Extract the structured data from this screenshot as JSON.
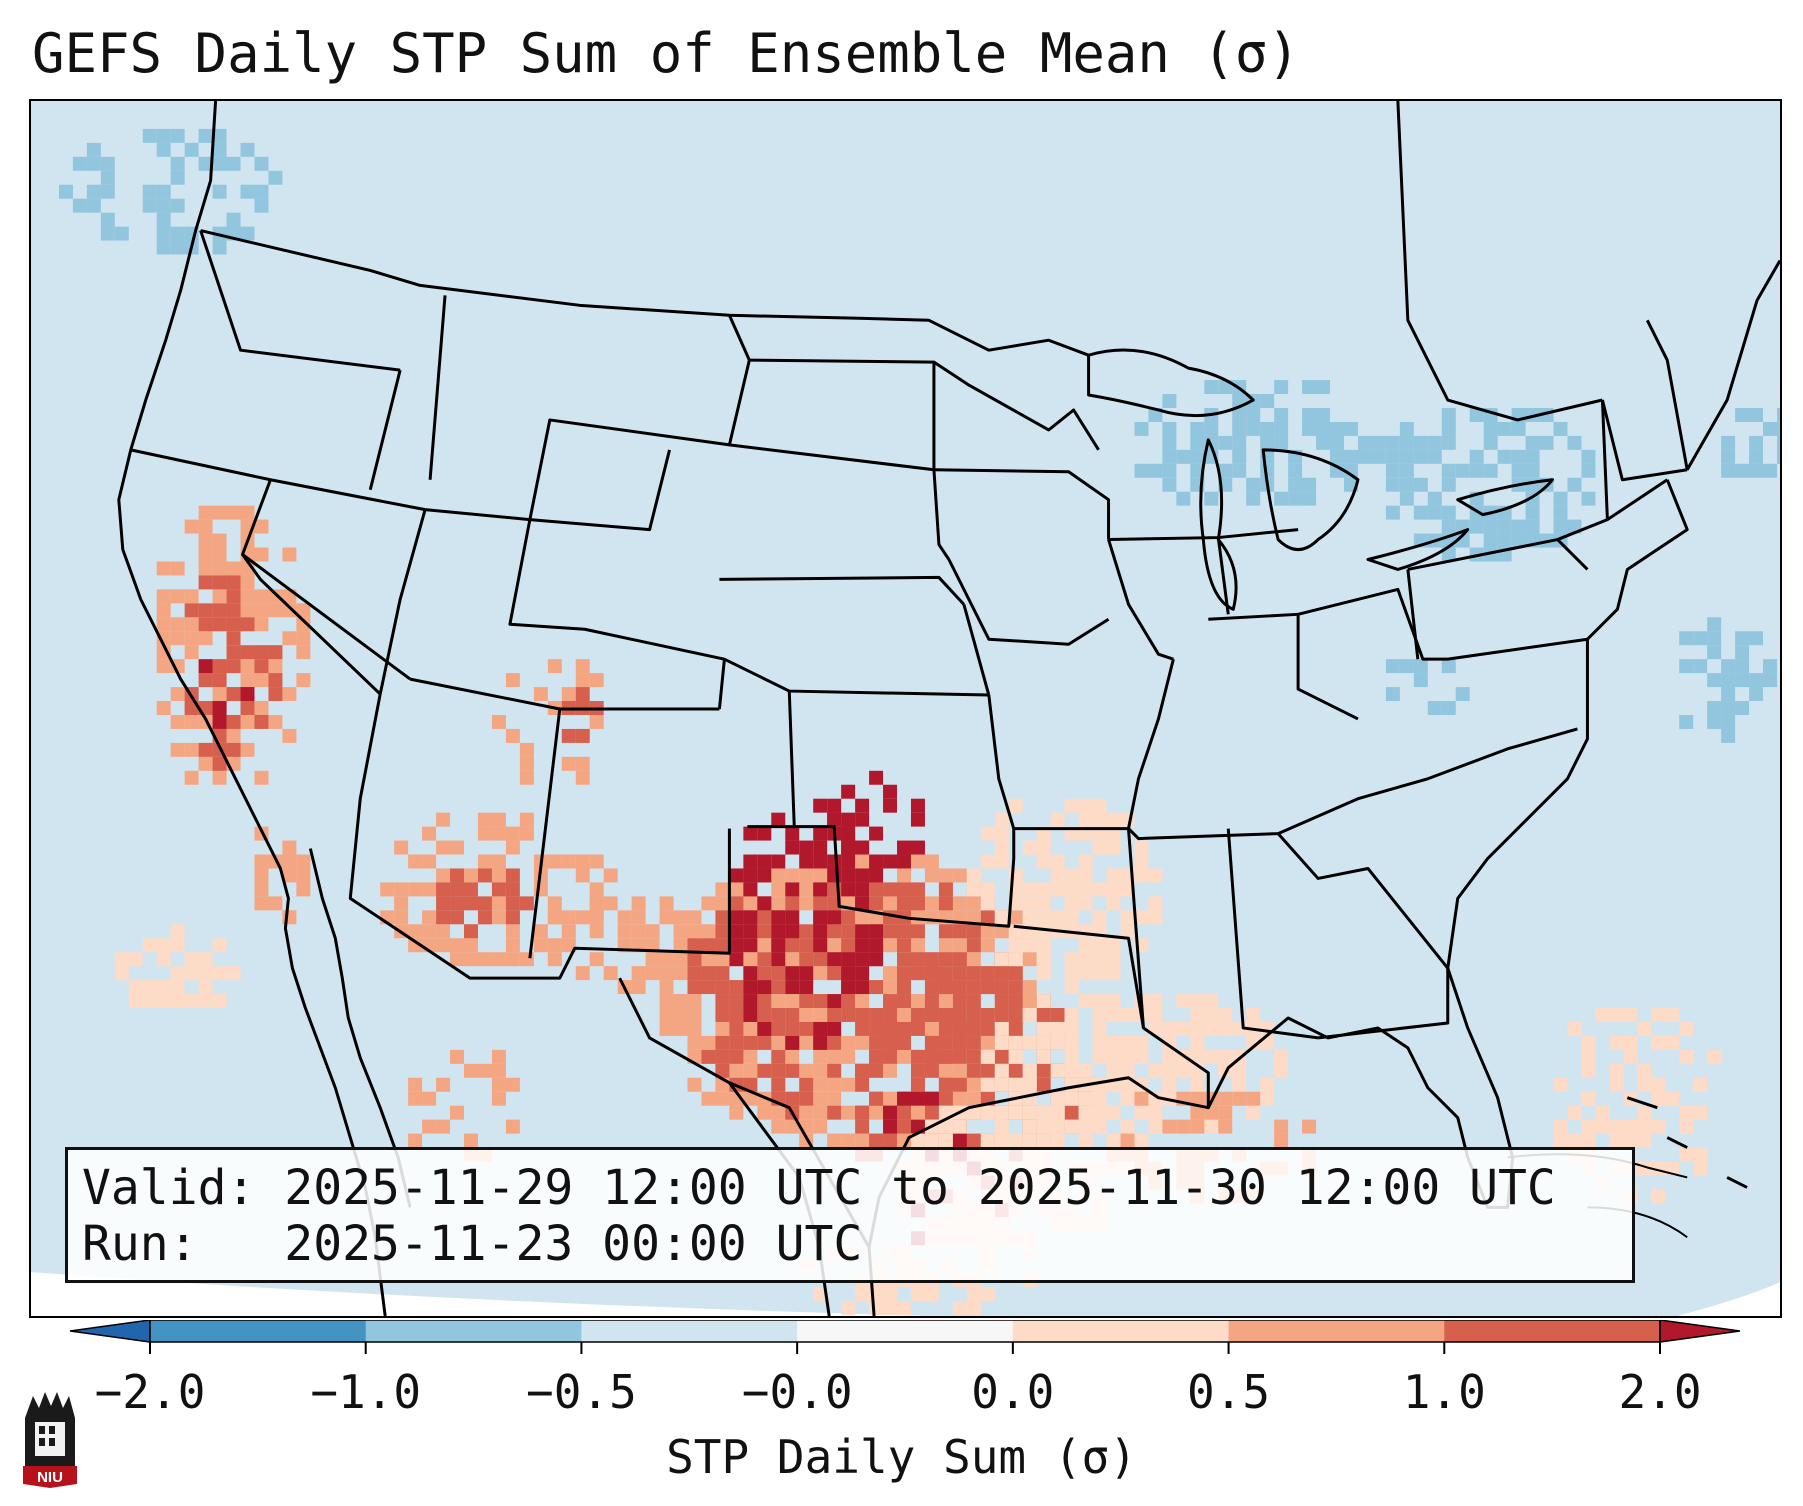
{
  "title": "GEFS Daily STP Sum of Ensemble Mean (σ)",
  "info": {
    "valid": "Valid: 2025-11-29 12:00 UTC to 2025-11-30 12:00 UTC",
    "run": "Run:   2025-11-23 00:00 UTC"
  },
  "map": {
    "projection": "Lambert Conformal CONUS",
    "background_color": "#d1e5f0",
    "field": "STP daily sum anomaly (sigma)"
  },
  "colorbar": {
    "label": "STP Daily Sum (σ)",
    "ticks": [
      "−2.0",
      "−1.0",
      "−0.5",
      "−0.0",
      "0.0",
      "0.5",
      "1.0",
      "2.0"
    ],
    "colors": [
      "#2166ac",
      "#4393c3",
      "#92c5de",
      "#d1e5f0",
      "#f7f7f7",
      "#fddbc7",
      "#f4a582",
      "#d6604d",
      "#b2182b"
    ]
  },
  "logo": {
    "text": "NIU",
    "icon": "university-tower-icon"
  }
}
